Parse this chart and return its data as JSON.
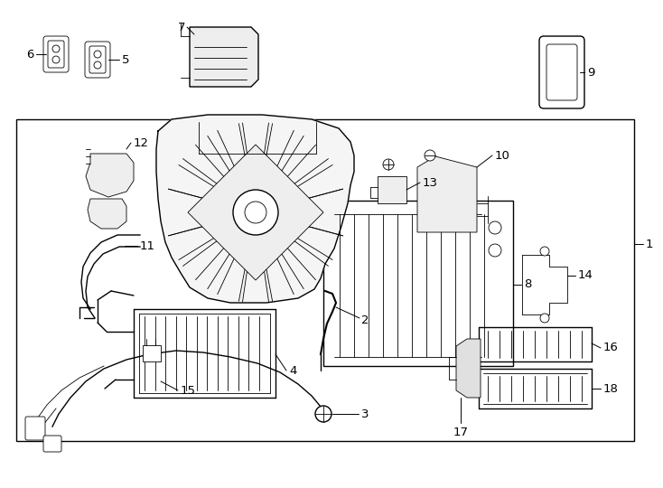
{
  "background_color": "#ffffff",
  "line_color": "#000000",
  "lw": 1.0,
  "tlw": 0.6,
  "fig_width": 7.34,
  "fig_height": 5.4,
  "dpi": 100
}
